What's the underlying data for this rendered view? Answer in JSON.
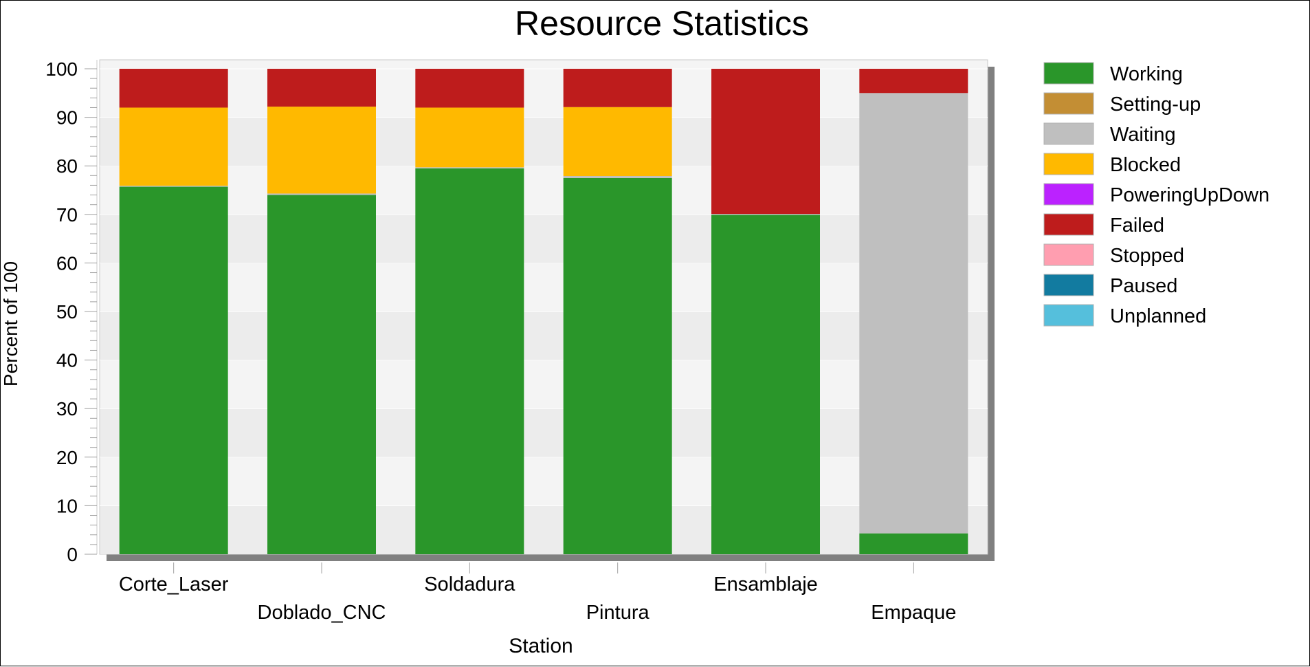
{
  "chart_data": {
    "type": "bar",
    "stacked": true,
    "title": "Resource Statistics",
    "xlabel": "Station",
    "ylabel": "Percent of 100",
    "ylim": [
      0,
      100
    ],
    "yticks": [
      0,
      10,
      20,
      30,
      40,
      50,
      60,
      70,
      80,
      90,
      100
    ],
    "grid": true,
    "legend_position": "right",
    "categories": [
      "Corte_Laser",
      "Doblado_CNC",
      "Soldadura",
      "Pintura",
      "Ensamblaje",
      "Empaque"
    ],
    "series": [
      {
        "name": "Working",
        "color": "#2a962a",
        "values": [
          75.7,
          74.0,
          79.5,
          77.5,
          69.9,
          4.3
        ]
      },
      {
        "name": "Setting-up",
        "color": "#c38e34",
        "values": [
          0,
          0,
          0,
          0,
          0,
          0
        ]
      },
      {
        "name": "Waiting",
        "color": "#bfbfbf",
        "values": [
          0.2,
          0.3,
          0.2,
          0.4,
          0.2,
          90.7
        ]
      },
      {
        "name": "Blocked",
        "color": "#ffb900",
        "values": [
          16.1,
          17.9,
          12.3,
          14.2,
          0,
          0
        ]
      },
      {
        "name": "PoweringUpDown",
        "color": "#bb22ff",
        "values": [
          0,
          0,
          0,
          0,
          0,
          0
        ]
      },
      {
        "name": "Failed",
        "color": "#be1c1c",
        "values": [
          8.0,
          7.8,
          8.0,
          7.9,
          29.9,
          5.0
        ]
      },
      {
        "name": "Stopped",
        "color": "#ff9eb0",
        "values": [
          0,
          0,
          0,
          0,
          0,
          0
        ]
      },
      {
        "name": "Paused",
        "color": "#127ba0",
        "values": [
          0,
          0,
          0,
          0,
          0,
          0
        ]
      },
      {
        "name": "Unplanned",
        "color": "#55bfdc",
        "values": [
          0,
          0,
          0,
          0,
          0,
          0
        ]
      }
    ]
  }
}
